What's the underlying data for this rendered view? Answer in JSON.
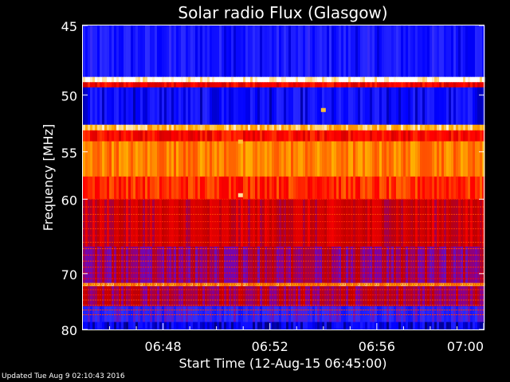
{
  "chart_data": {
    "type": "heatmap",
    "title": "Solar radio Flux (Glasgow)",
    "xlabel": "Start Time (12-Aug-15 06:45:00)",
    "ylabel": "Frequency [MHz]",
    "x_ticks": [
      "06:48",
      "06:52",
      "06:56",
      "07:00"
    ],
    "x_tick_minutes": [
      3,
      7,
      11,
      15
    ],
    "xlim_minutes": [
      0,
      15
    ],
    "y_ticks": [
      45,
      50,
      55,
      60,
      70,
      80
    ],
    "ylim": [
      45,
      80
    ],
    "y_scale": "nonlinear (reciprocal-like)",
    "colormap": [
      "#000040",
      "#0000ff",
      "#3030ff",
      "#8000a0",
      "#c00000",
      "#ff0000",
      "#ff6000",
      "#ffb000",
      "#ffffff"
    ],
    "bands": [
      {
        "from": 45,
        "to": 48.6,
        "level": 0.18
      },
      {
        "from": 48.6,
        "to": 49.0,
        "level": 1.0
      },
      {
        "from": 49.0,
        "to": 49.4,
        "level": 0.6
      },
      {
        "from": 49.4,
        "to": 52.5,
        "level": 0.15
      },
      {
        "from": 52.5,
        "to": 53.0,
        "level": 0.9
      },
      {
        "from": 53.0,
        "to": 54.0,
        "level": 0.62
      },
      {
        "from": 54.0,
        "to": 57.5,
        "level": 0.8
      },
      {
        "from": 57.5,
        "to": 60.0,
        "level": 0.68
      },
      {
        "from": 60.0,
        "to": 66.0,
        "level": 0.52
      },
      {
        "from": 66.0,
        "to": 71.5,
        "level": 0.42
      },
      {
        "from": 71.5,
        "to": 72.0,
        "level": 0.85
      },
      {
        "from": 72.0,
        "to": 75.5,
        "level": 0.45
      },
      {
        "from": 75.5,
        "to": 78.5,
        "level": 0.25
      },
      {
        "from": 78.5,
        "to": 80.0,
        "level": 0.12
      }
    ],
    "spots": [
      {
        "minute": 5.9,
        "freq": 59.5,
        "level": 0.95
      },
      {
        "minute": 9.0,
        "freq": 51.2,
        "level": 0.9
      },
      {
        "minute": 5.9,
        "freq": 54.0,
        "level": 0.9
      }
    ]
  },
  "footer": "Updated Tue Aug  9 02:10:43 2016"
}
